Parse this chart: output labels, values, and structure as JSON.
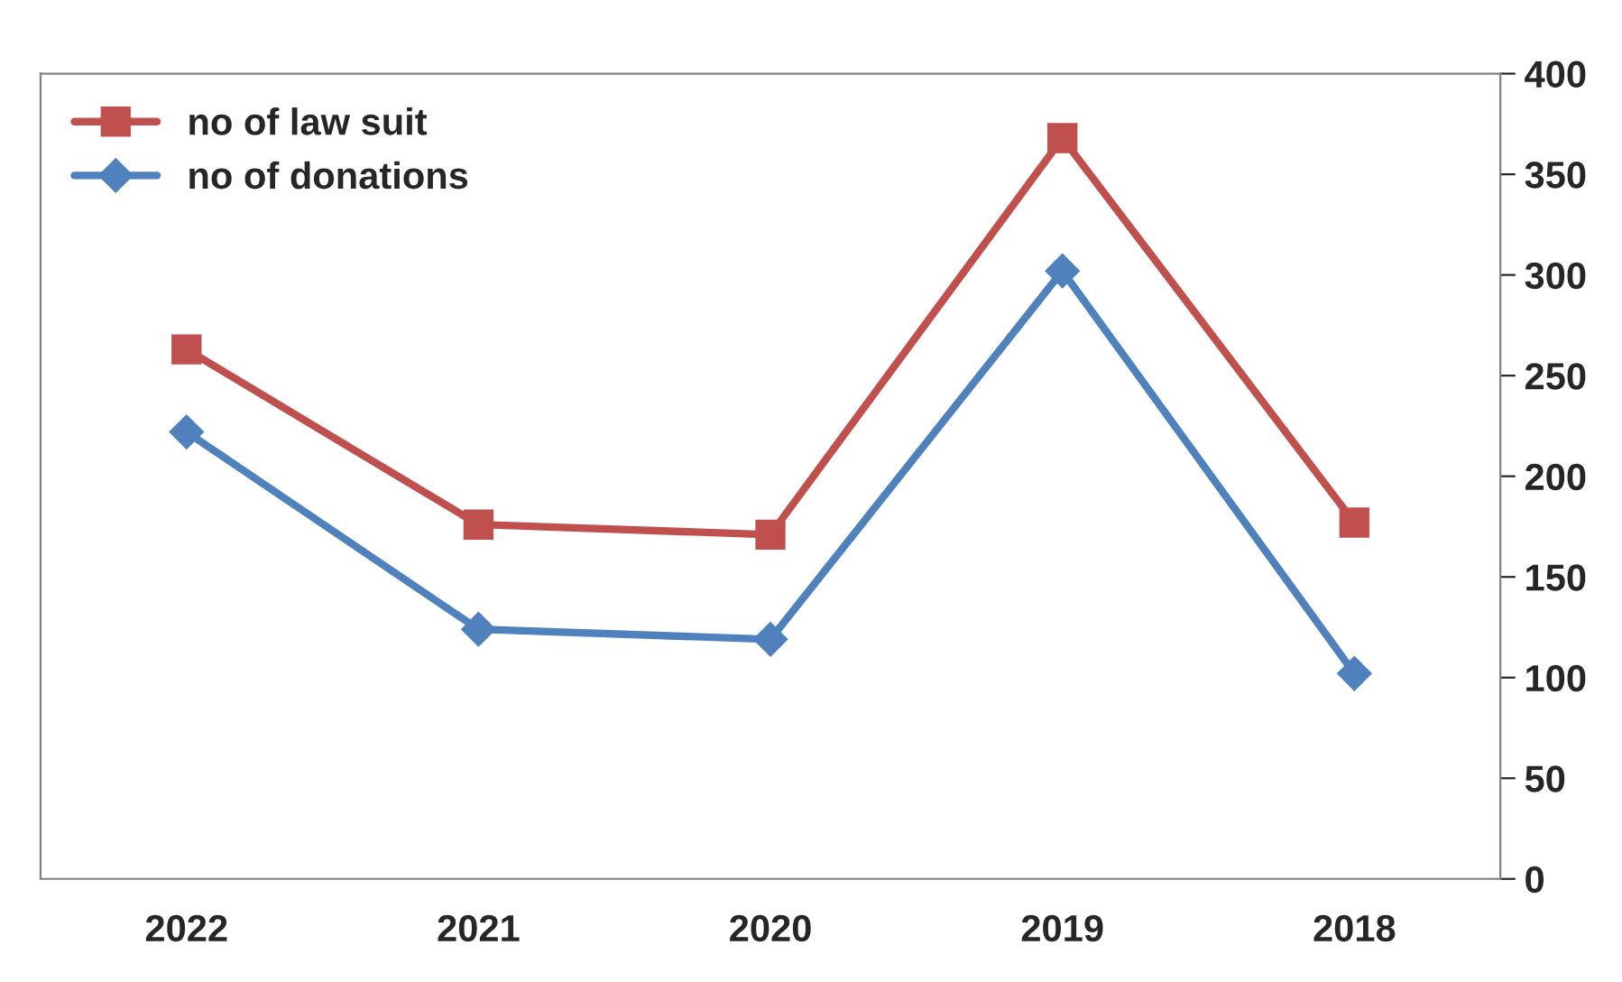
{
  "chart_data": {
    "type": "line",
    "categories": [
      "2022",
      "2021",
      "2020",
      "2019",
      "2018"
    ],
    "series": [
      {
        "name": "no of law suit",
        "color": "#c0504d",
        "marker": "square",
        "values": [
          263,
          176,
          171,
          368,
          177
        ]
      },
      {
        "name": "no of donations",
        "color": "#4f81bd",
        "marker": "diamond",
        "values": [
          222,
          124,
          119,
          302,
          102
        ]
      }
    ],
    "ylim": [
      0,
      400
    ],
    "yticks": [
      0,
      50,
      100,
      150,
      200,
      250,
      300,
      350,
      400
    ],
    "grid": false,
    "legend": "top left",
    "line_style": "solid"
  }
}
